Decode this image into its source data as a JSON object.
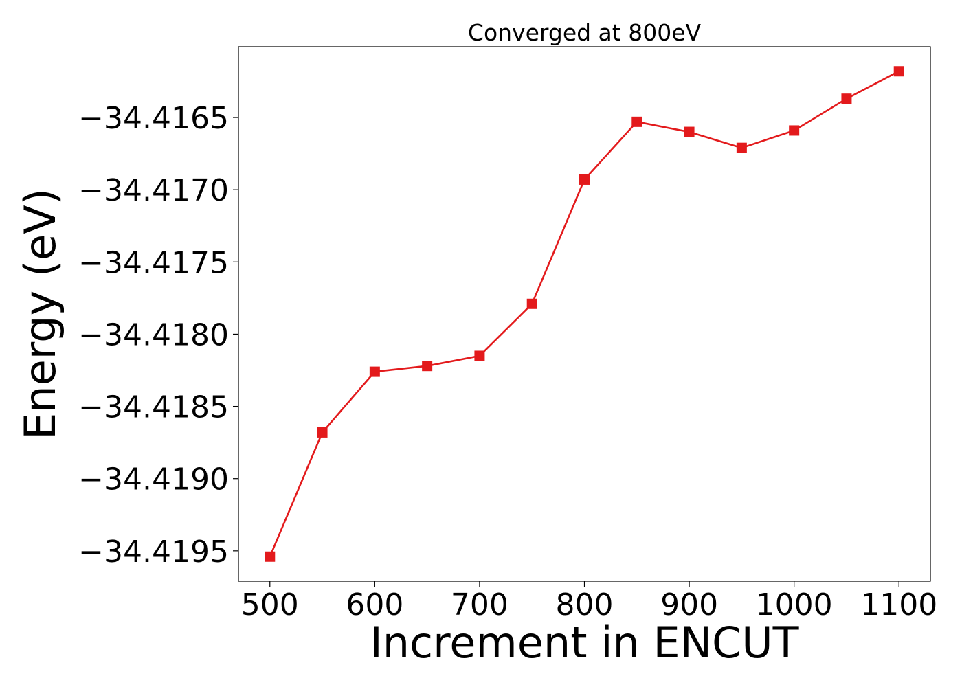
{
  "chart_data": {
    "type": "line",
    "title": "Converged at 800eV",
    "xlabel": "Increment in ENCUT",
    "ylabel": "Energy (eV)",
    "xlim": [
      470,
      1130
    ],
    "ylim": [
      -34.41971,
      -34.41601
    ],
    "xticks": [
      500,
      600,
      700,
      800,
      900,
      1000,
      1100
    ],
    "xtick_labels": [
      "500",
      "600",
      "700",
      "800",
      "900",
      "1000",
      "1100"
    ],
    "yticks": [
      -34.4195,
      -34.419,
      -34.4185,
      -34.418,
      -34.4175,
      -34.417,
      -34.4165
    ],
    "ytick_labels": [
      "−34.4195",
      "−34.4190",
      "−34.4185",
      "−34.4180",
      "−34.4175",
      "−34.4170",
      "−34.4165"
    ],
    "grid": false,
    "legend": "none",
    "series": [
      {
        "color": "#e31a1c",
        "marker": "square",
        "x": [
          500,
          550,
          600,
          650,
          700,
          750,
          800,
          850,
          900,
          950,
          1000,
          1050,
          1100
        ],
        "y": [
          -34.41954,
          -34.41868,
          -34.41826,
          -34.41822,
          -34.41815,
          -34.41779,
          -34.41693,
          -34.41653,
          -34.4166,
          -34.41671,
          -34.41659,
          -34.41637,
          -34.41618
        ]
      }
    ]
  }
}
